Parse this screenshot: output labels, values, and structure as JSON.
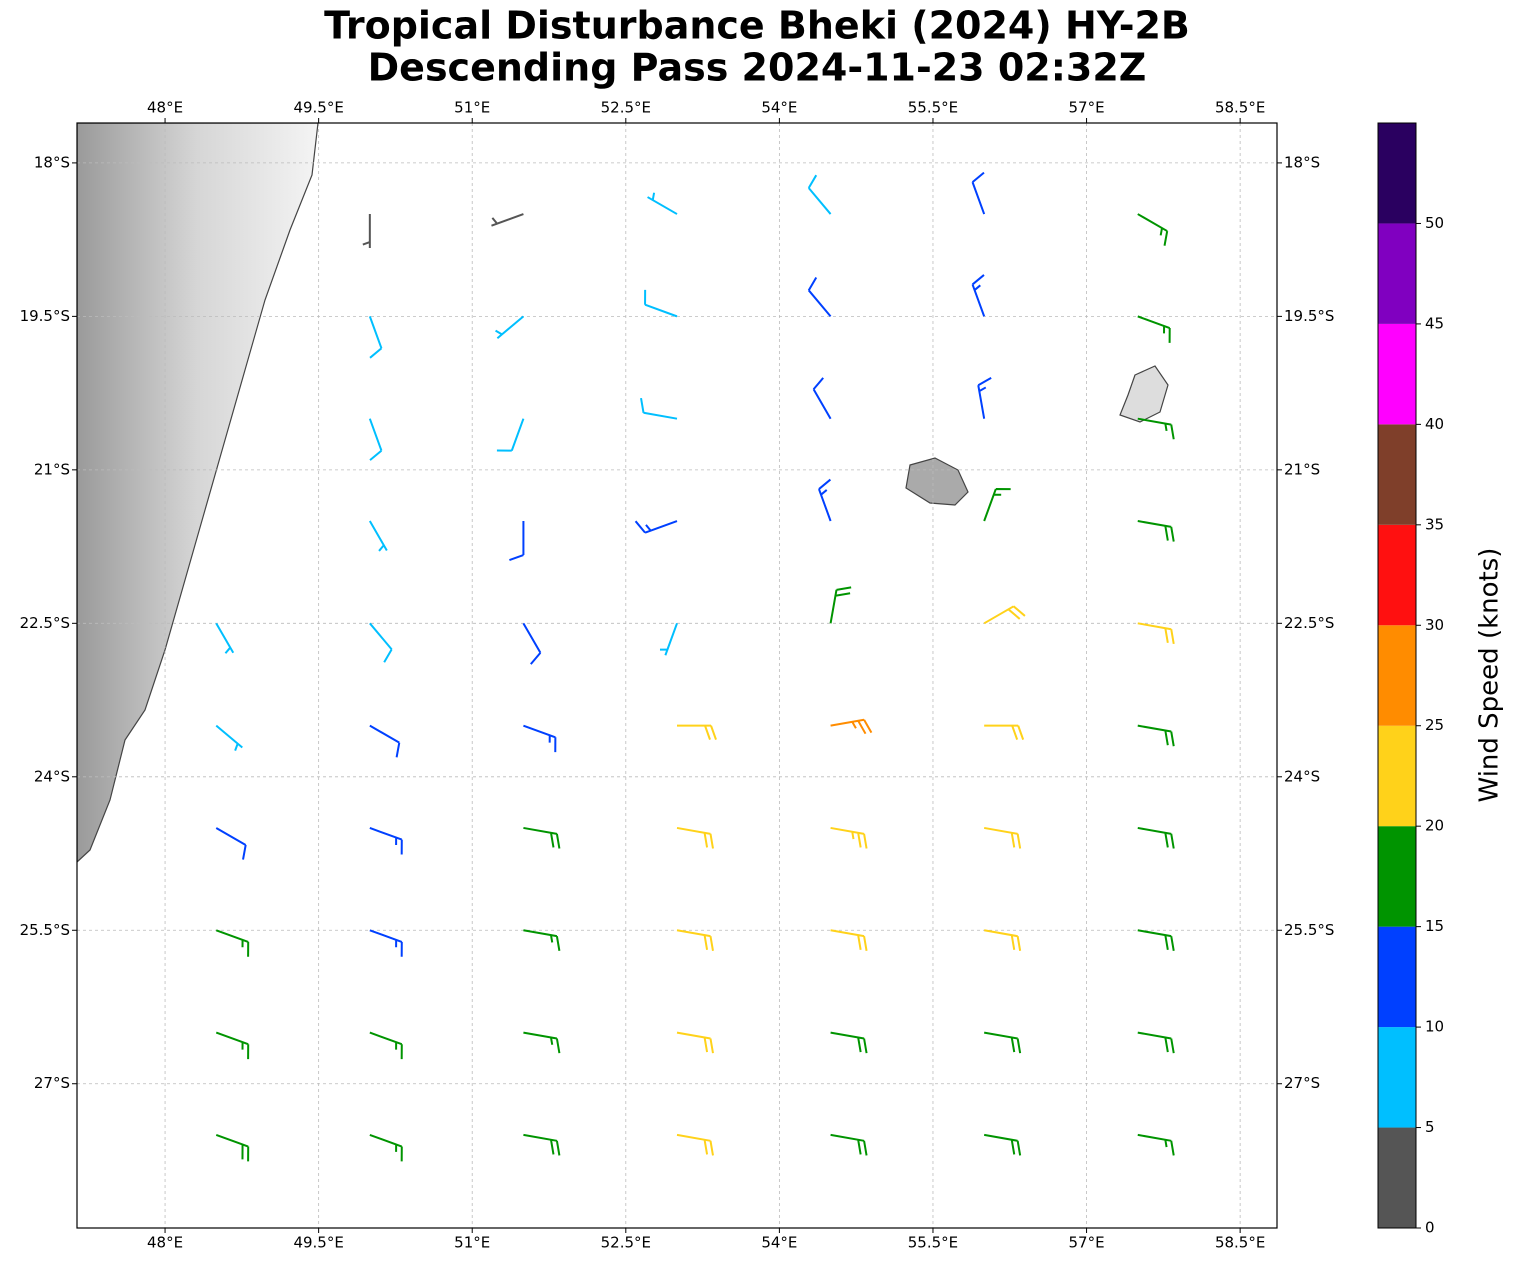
{
  "chart_data": {
    "type": "barbs",
    "title_lines": [
      "Tropical Disturbance Bheki (2024) HY-2B",
      "Descending Pass 2024-11-23 02:32Z"
    ],
    "xlim": [
      47.14,
      58.86
    ],
    "ylim": [
      -28.41,
      -17.61
    ],
    "xticks": [
      {
        "value": 48,
        "label": "48°E"
      },
      {
        "value": 49.5,
        "label": "49.5°E"
      },
      {
        "value": 51,
        "label": "51°E"
      },
      {
        "value": 52.5,
        "label": "52.5°E"
      },
      {
        "value": 54,
        "label": "54°E"
      },
      {
        "value": 55.5,
        "label": "55.5°E"
      },
      {
        "value": 57,
        "label": "57°E"
      },
      {
        "value": 58.5,
        "label": "58.5°E"
      }
    ],
    "yticks": [
      {
        "value": -18,
        "label": "18°S"
      },
      {
        "value": -19.5,
        "label": "19.5°S"
      },
      {
        "value": -21,
        "label": "21°S"
      },
      {
        "value": -22.5,
        "label": "22.5°S"
      },
      {
        "value": -24,
        "label": "24°S"
      },
      {
        "value": -25.5,
        "label": "25.5°S"
      },
      {
        "value": -27,
        "label": "27°S"
      }
    ],
    "grid": true,
    "barbs": {
      "lon": [
        48.5,
        50,
        51.5,
        53,
        54.5,
        56,
        57.5
      ],
      "lat": [
        -18.5,
        -19.5,
        -20.5,
        -21.5,
        -22.5,
        -23.5,
        -24.5,
        -25.5,
        -26.5,
        -27.5
      ],
      "speed": [
        [
          null,
          3,
          4,
          7,
          9,
          12,
          15
        ],
        [
          null,
          8,
          7,
          8,
          11,
          13,
          16
        ],
        [
          null,
          8,
          8,
          9,
          12,
          14,
          17
        ],
        [
          null,
          7,
          12,
          14,
          14,
          17,
          18
        ],
        [
          5,
          8,
          12,
          6,
          18,
          22,
          20
        ],
        [
          7,
          12,
          14,
          20,
          25,
          22,
          19
        ],
        [
          12,
          14,
          18,
          22,
          23,
          22,
          19
        ],
        [
          16,
          14,
          17,
          21,
          20,
          20,
          19
        ],
        [
          17,
          15,
          17,
          21,
          19,
          19,
          18
        ],
        [
          18,
          16,
          18,
          20,
          19,
          18,
          17
        ]
      ],
      "direction": [
        [
          null,
          180,
          250,
          300,
          320,
          340,
          120
        ],
        [
          null,
          160,
          230,
          290,
          320,
          340,
          110
        ],
        [
          null,
          160,
          200,
          280,
          330,
          350,
          100
        ],
        [
          null,
          150,
          180,
          250,
          340,
          20,
          100
        ],
        [
          150,
          140,
          150,
          200,
          10,
          60,
          100
        ],
        [
          130,
          120,
          110,
          90,
          80,
          90,
          100
        ],
        [
          120,
          110,
          100,
          100,
          100,
          100,
          100
        ],
        [
          110,
          110,
          100,
          100,
          100,
          100,
          100
        ],
        [
          110,
          110,
          100,
          100,
          100,
          100,
          100
        ],
        [
          110,
          110,
          100,
          100,
          100,
          100,
          100
        ]
      ]
    },
    "colorbar": {
      "label": "Wind Speed (knots)",
      "bounds": [
        0,
        5,
        10,
        15,
        20,
        25,
        30,
        35,
        40,
        45,
        50,
        55
      ],
      "colors": [
        "#555555",
        "#00bfff",
        "#0040ff",
        "#009400",
        "#ffd21a",
        "#ff8c00",
        "#ff1010",
        "#7f3f2a",
        "#ff00ff",
        "#8000c0",
        "#2a0060"
      ],
      "ticks": [
        0,
        5,
        10,
        15,
        20,
        25,
        30,
        35,
        40,
        45,
        50
      ]
    }
  }
}
